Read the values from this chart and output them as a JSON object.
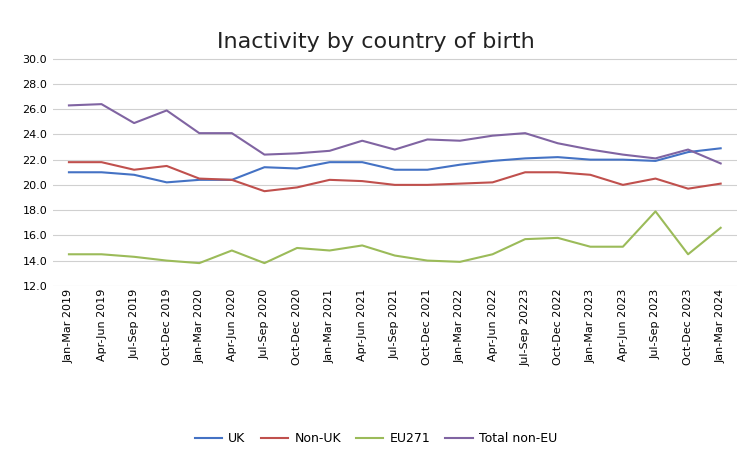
{
  "title": "Inactivity by country of birth",
  "x_labels": [
    "Jan-Mar 2019",
    "Apr-Jun 2019",
    "Jul-Sep 2019",
    "Oct-Dec 2019",
    "Jan-Mar 2020",
    "Apr-Jun 2020",
    "Jul-Sep 2020",
    "Oct-Dec 2020",
    "Jan-Mar 2021",
    "Apr-Jun 2021",
    "Jul-Sep 2021",
    "Oct-Dec 2021",
    "Jan-Mar 2022",
    "Apr-Jun 2022",
    "Jul-Sep 20223",
    "Oct-Dec 2022",
    "Jan-Mar 2023",
    "Apr-Jun 2023",
    "Jul-Sep 2023",
    "Oct-Dec 2023",
    "Jan-Mar 2024"
  ],
  "series": {
    "UK": {
      "color": "#4472C4",
      "values": [
        21.0,
        21.0,
        20.8,
        20.2,
        20.4,
        20.4,
        21.4,
        21.3,
        21.8,
        21.8,
        21.2,
        21.2,
        21.6,
        21.9,
        22.1,
        22.2,
        22.0,
        22.0,
        21.9,
        22.6,
        22.9
      ]
    },
    "Non-UK": {
      "color": "#C0504D",
      "values": [
        21.8,
        21.8,
        21.2,
        21.5,
        20.5,
        20.4,
        19.5,
        19.8,
        20.4,
        20.3,
        20.0,
        20.0,
        20.1,
        20.2,
        21.0,
        21.0,
        20.8,
        20.0,
        20.5,
        19.7,
        20.1
      ]
    },
    "EU271": {
      "color": "#9BBB59",
      "values": [
        14.5,
        14.5,
        14.3,
        14.0,
        13.8,
        14.8,
        13.8,
        15.0,
        14.8,
        15.2,
        14.4,
        14.0,
        13.9,
        14.5,
        15.7,
        15.8,
        15.1,
        15.1,
        17.9,
        14.5,
        16.6
      ]
    },
    "Total non-EU": {
      "color": "#8064A2",
      "values": [
        26.3,
        26.4,
        24.9,
        25.9,
        24.1,
        24.1,
        22.4,
        22.5,
        22.7,
        23.5,
        22.8,
        23.6,
        23.5,
        23.9,
        24.1,
        23.3,
        22.8,
        22.4,
        22.1,
        22.8,
        21.7
      ]
    }
  },
  "ylim": [
    12.0,
    31.0
  ],
  "yticks": [
    12.0,
    14.0,
    16.0,
    18.0,
    20.0,
    22.0,
    24.0,
    26.0,
    28.0,
    30.0
  ],
  "legend_order": [
    "UK",
    "Non-UK",
    "EU271",
    "Total non-EU"
  ],
  "background_color": "#ffffff",
  "grid_color": "#d0d0d0",
  "title_fontsize": 16,
  "tick_fontsize": 8,
  "legend_fontsize": 9
}
